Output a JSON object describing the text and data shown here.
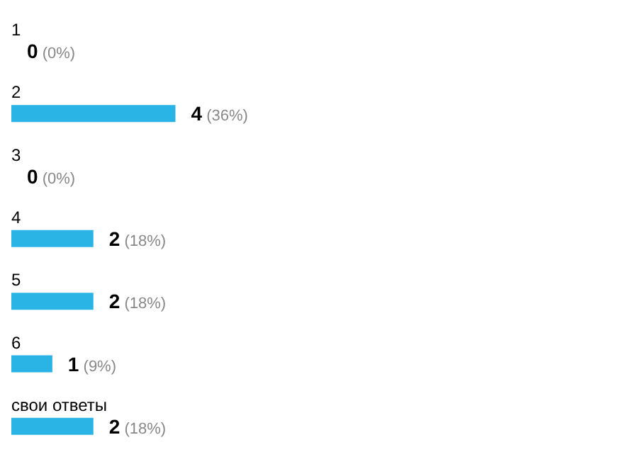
{
  "chart_data": {
    "type": "bar",
    "orientation": "horizontal",
    "categories": [
      "1",
      "2",
      "3",
      "4",
      "5",
      "6",
      "свои ответы"
    ],
    "values": [
      0,
      4,
      0,
      2,
      2,
      1,
      2
    ],
    "value_labels": [
      "0 (0%)",
      "4 (36%)",
      "0 (0%)",
      "2 (18%)",
      "2 (18%)",
      "1 (9%)",
      "2 (18%)"
    ],
    "color": "#2ab4e6",
    "grid": false,
    "legend": false
  }
}
